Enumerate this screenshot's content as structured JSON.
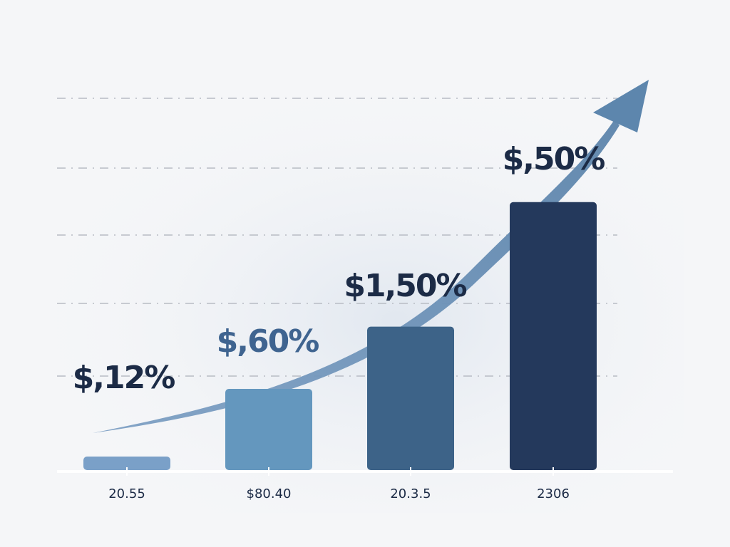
{
  "chart_data": {
    "type": "bar",
    "title": "",
    "xlabel": "",
    "ylabel": "",
    "categories": [
      "20.55",
      "$80.40",
      "20.3.5",
      "2306"
    ],
    "values": [
      5,
      30,
      53,
      99
    ],
    "ylim": [
      0,
      100
    ],
    "grid": true,
    "data_labels": [
      "$,12%",
      "$,60%",
      "$1,50%",
      "$,50%"
    ],
    "trend_arrow": "up",
    "colors": {
      "bars": [
        "#7aa0c8",
        "#6497be",
        "#3d6388",
        "#24395c"
      ],
      "labels": [
        "#1c2b46",
        "#3f6490",
        "#1c2b46",
        "#1c2b46"
      ],
      "arrow": "#5d86ad",
      "axis": "#ffffff",
      "grid": "#b8bcc4"
    }
  }
}
